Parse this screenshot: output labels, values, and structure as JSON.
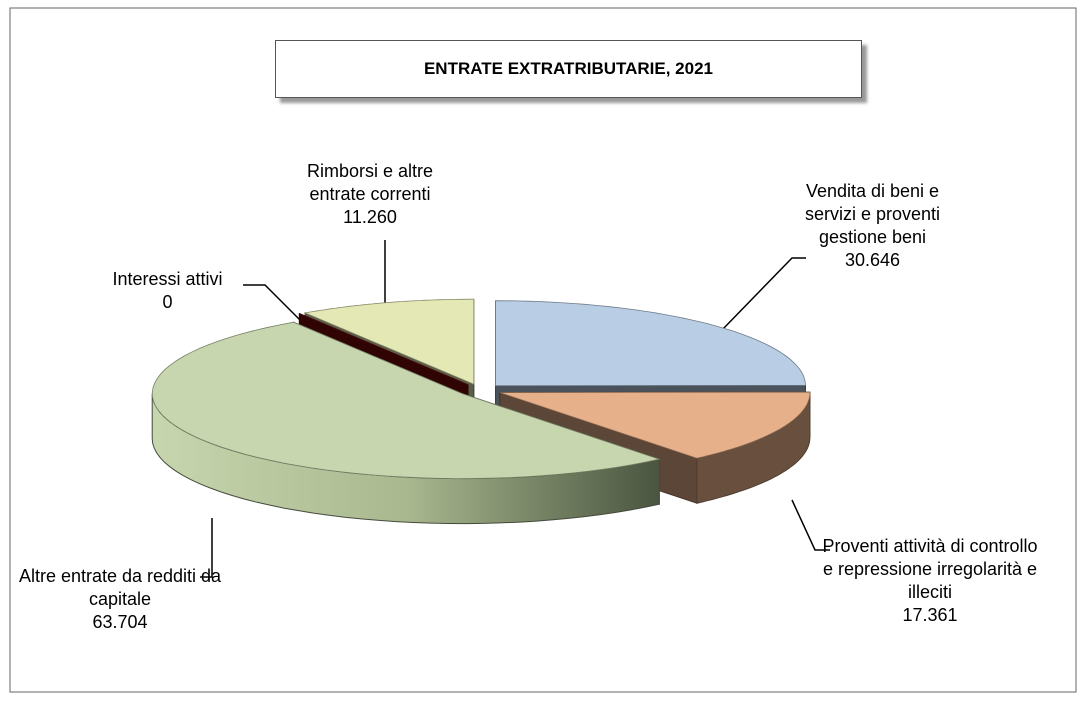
{
  "chart_data": {
    "type": "pie3d",
    "title": "ENTRATE EXTRATRIBUTARIE, 2021",
    "categories": [
      "Vendita di beni e servizi e proventi gestione beni",
      "Proventi attività di controllo e repressione irregolarità e illeciti",
      "Altre entrate da redditi da capitale",
      "Interessi attivi",
      "Rimborsi e altre entrate correnti"
    ],
    "values": [
      30646,
      17361,
      63704,
      0,
      11260
    ],
    "value_labels": [
      "30.646",
      "17.361",
      "63.704",
      "0",
      "11.260"
    ],
    "colors": [
      "#b9cde5",
      "#e6b08a",
      "#c7d6ae",
      "#7b0a0a",
      "#e4e8b4"
    ]
  }
}
